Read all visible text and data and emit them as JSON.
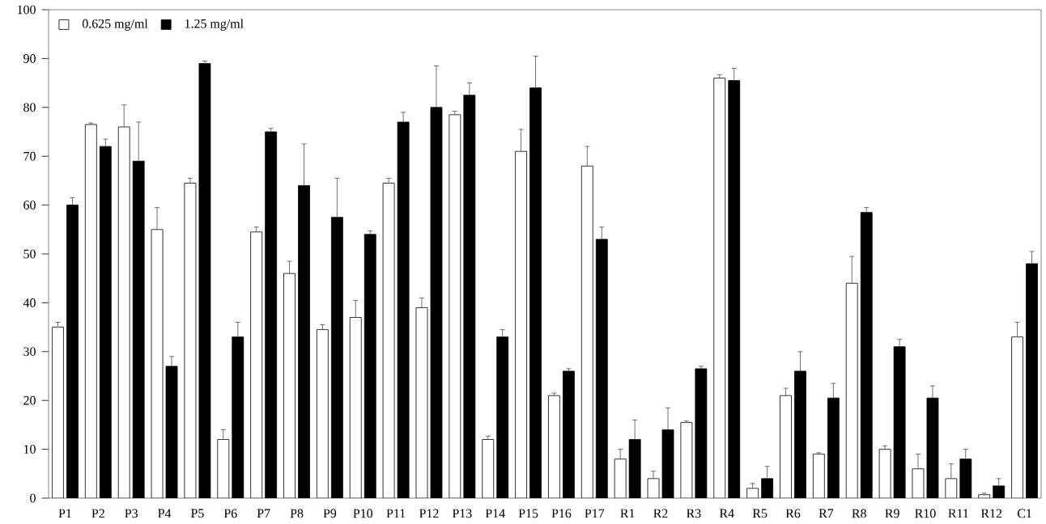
{
  "chart_data": {
    "type": "bar",
    "categories": [
      "P1",
      "P2",
      "P3",
      "P4",
      "P5",
      "P6",
      "P7",
      "P8",
      "P9",
      "P10",
      "P11",
      "P12",
      "P13",
      "P14",
      "P15",
      "P16",
      "P17",
      "R1",
      "R2",
      "R3",
      "R4",
      "R5",
      "R6",
      "R7",
      "R8",
      "R9",
      "R10",
      "R11",
      "R12",
      "C1"
    ],
    "series": [
      {
        "name": "0.625 mg/ml",
        "color": "#ffffff",
        "values": [
          35,
          76.5,
          76,
          55,
          64.5,
          12,
          54.5,
          46,
          34.5,
          37,
          64.5,
          39,
          78.5,
          12,
          71,
          21,
          68,
          8,
          4,
          15.5,
          86,
          2,
          21,
          9,
          44,
          10,
          6,
          4,
          0.7,
          33
        ],
        "errors": [
          1,
          0.3,
          4.5,
          4.5,
          1,
          2,
          1,
          2.5,
          1,
          3.5,
          1,
          2,
          0.7,
          0.7,
          4.5,
          0.5,
          4,
          2,
          1.5,
          0.3,
          0.7,
          1,
          1.5,
          0.3,
          5.5,
          0.7,
          3,
          3,
          0.3,
          3
        ]
      },
      {
        "name": "1.25 mg/ml",
        "color": "#000000",
        "values": [
          60,
          72,
          69,
          27,
          89,
          33,
          75,
          64,
          57.5,
          54,
          77,
          80,
          82.5,
          33,
          84,
          26,
          53,
          12,
          14,
          26.5,
          85.5,
          4,
          26,
          20.5,
          58.5,
          31,
          20.5,
          8,
          2.5,
          48
        ],
        "errors": [
          1.5,
          1.5,
          8,
          2,
          0.5,
          3,
          0.7,
          8.5,
          8,
          0.7,
          2,
          8.5,
          2.5,
          1.5,
          6.5,
          0.5,
          2.5,
          4,
          4.5,
          0.5,
          2.5,
          2.5,
          4,
          3,
          1,
          1.5,
          2.5,
          2,
          1.5,
          2.5
        ]
      }
    ],
    "ylim": [
      0,
      100
    ],
    "yticks": [
      0,
      10,
      20,
      30,
      40,
      50,
      60,
      70,
      80,
      90,
      100
    ],
    "grid": false,
    "legend": "top left"
  }
}
